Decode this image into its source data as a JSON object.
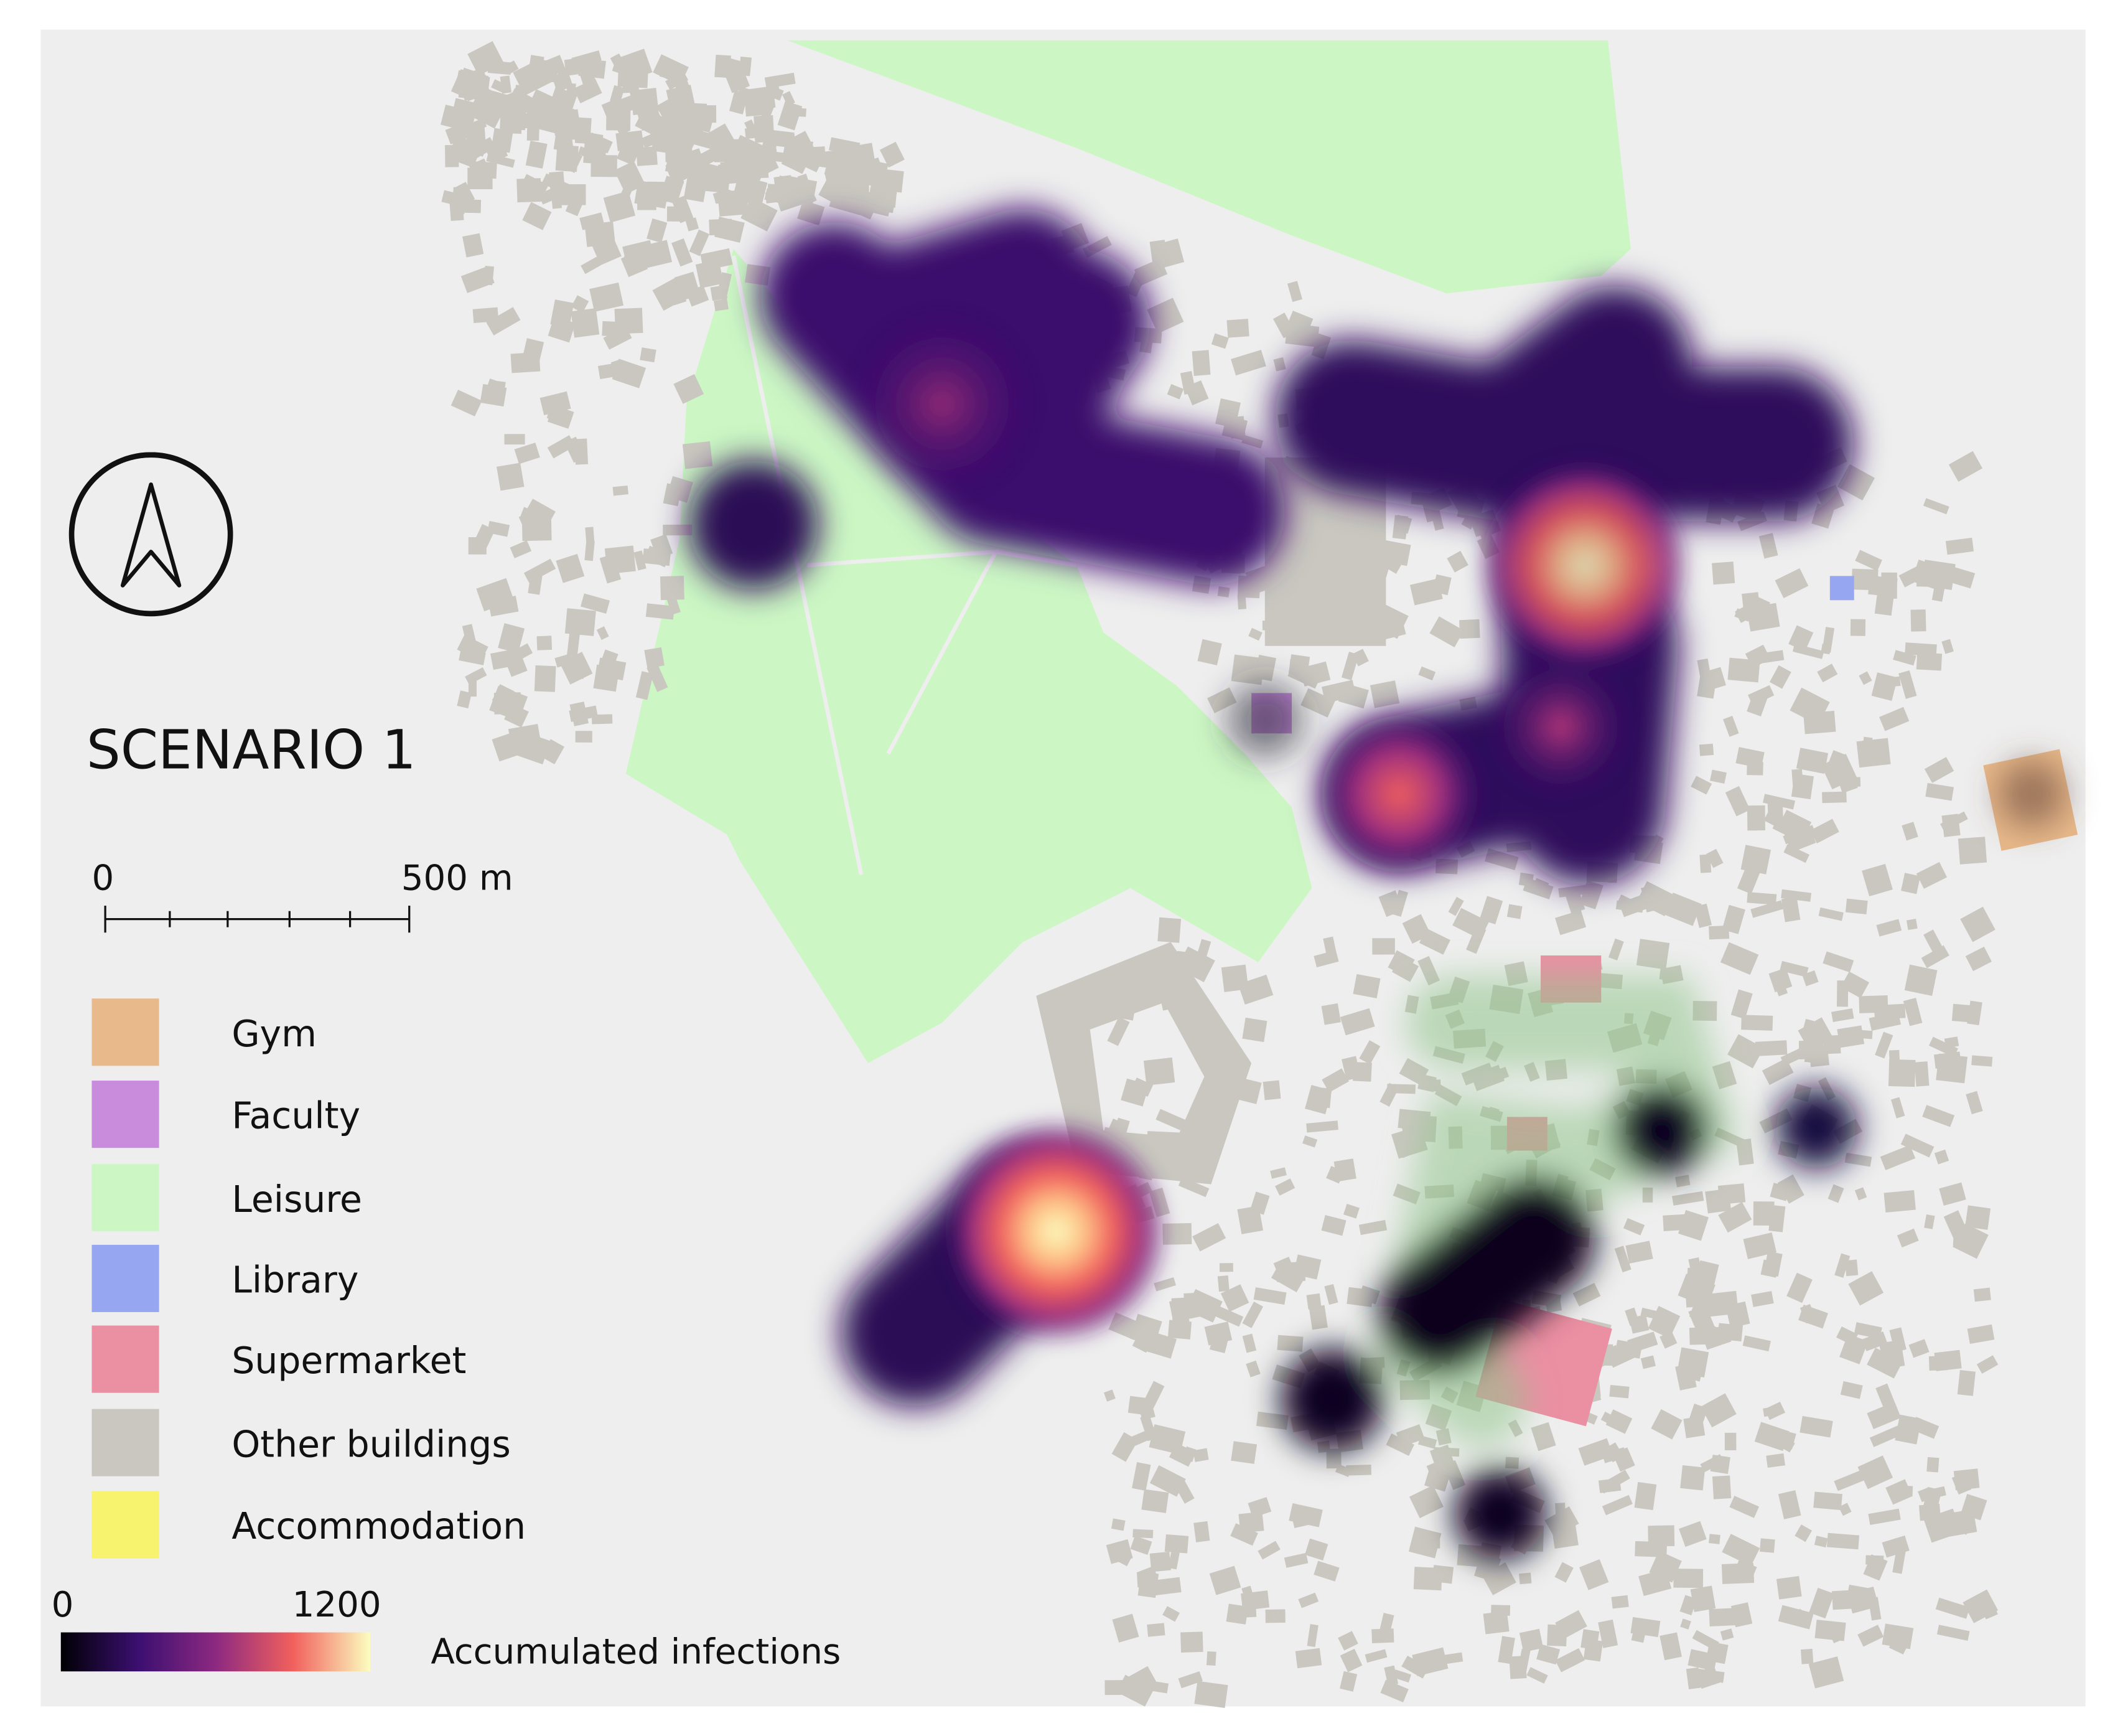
{
  "title": "SCENARIO 1",
  "scale_bar": {
    "start": "0",
    "end": "500 m"
  },
  "legend": {
    "items": [
      {
        "label": "Gym",
        "color": "#e8b98a"
      },
      {
        "label": "Faculty",
        "color": "#c98bdc"
      },
      {
        "label": "Leisure",
        "color": "#ccf7c4"
      },
      {
        "label": "Library",
        "color": "#97a6f0"
      },
      {
        "label": "Supermarket",
        "color": "#eb8fa3"
      },
      {
        "label": "Other buildings",
        "color": "#c9c7bf"
      },
      {
        "label": "Accommodation",
        "color": "#f7f36e"
      }
    ]
  },
  "colorbar": {
    "min": "0",
    "max": "1200",
    "label": "Accumulated infections"
  }
}
